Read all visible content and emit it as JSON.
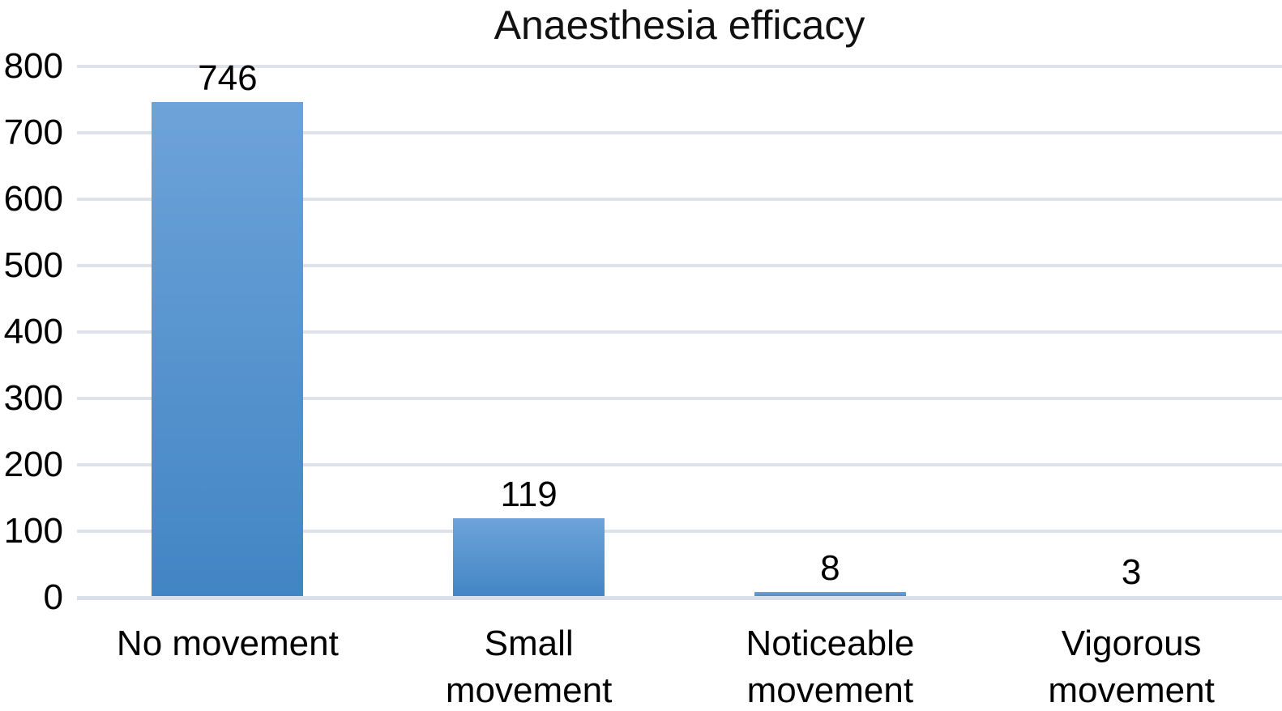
{
  "chart_data": {
    "type": "bar",
    "title": "Anaesthesia efficacy",
    "categories": [
      "No movement",
      "Small\nmovement",
      "Noticeable\nmovement",
      "Vigorous\nmovement"
    ],
    "values": [
      746,
      119,
      8,
      3
    ],
    "y_ticks": [
      800,
      700,
      600,
      500,
      400,
      300,
      200,
      100,
      0
    ],
    "ylim": [
      0,
      800
    ],
    "xlabel": "",
    "ylabel": "",
    "grid": "horizontal",
    "legend": "none",
    "colors": {
      "bar_gradient_top": "#6da3d9",
      "bar_gradient_bottom": "#4285c4",
      "gridline": "#dde2eb",
      "baseline": "#d8deea",
      "text": "#000000",
      "background": "#ffffff"
    }
  }
}
